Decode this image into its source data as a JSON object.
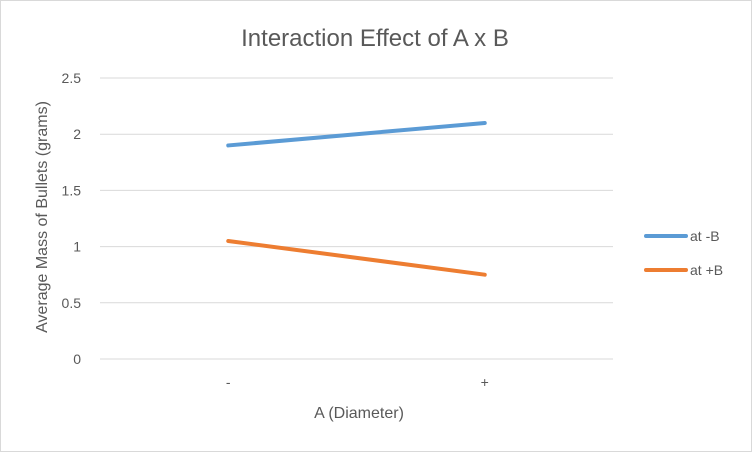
{
  "chart_data": {
    "type": "line",
    "title": "Interaction Effect of A x B",
    "xlabel": "A (Diameter)",
    "ylabel": "Average Mass of Bullets (grams)",
    "categories": [
      "-",
      "+"
    ],
    "ylim": [
      0,
      2.5
    ],
    "yticks": [
      "0",
      "0.5",
      "1",
      "1.5",
      "2",
      "2.5"
    ],
    "grid": true,
    "legend_position": "right",
    "series": [
      {
        "name": "at -B",
        "values": [
          1.9,
          2.1
        ],
        "color": "#5b9bd5"
      },
      {
        "name": "at +B",
        "values": [
          1.05,
          0.75
        ],
        "color": "#ed7d31"
      }
    ]
  }
}
